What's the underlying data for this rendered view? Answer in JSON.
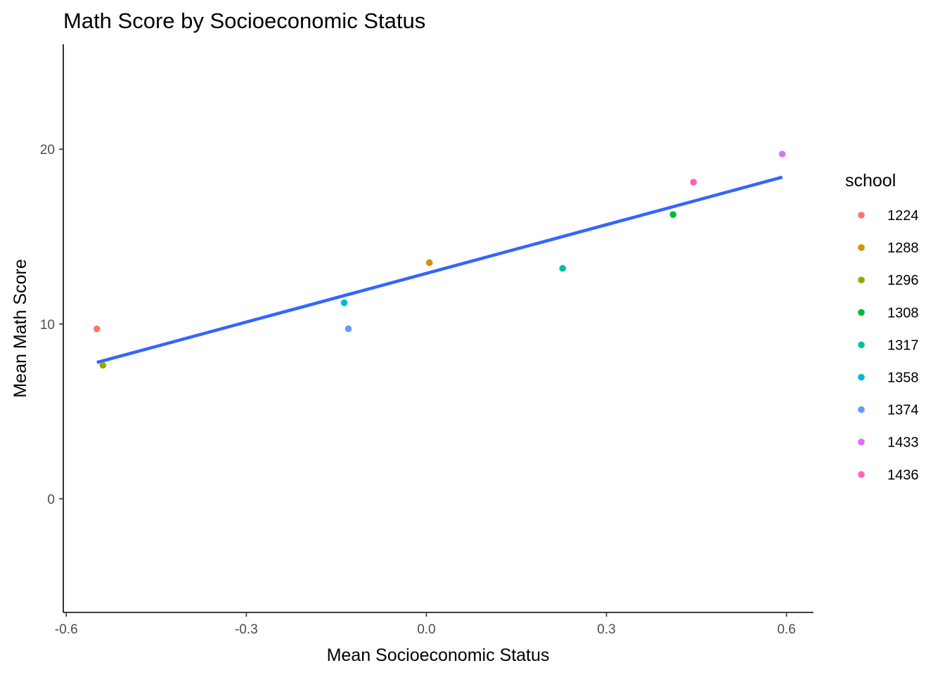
{
  "chart_data": {
    "type": "scatter",
    "title": "Math Score by Socioeconomic Status",
    "xlabel": "Mean Socioeconomic Status",
    "ylabel": "Mean Math Score",
    "xlim": [
      -0.605,
      0.645
    ],
    "ylim": [
      -6.5,
      26.0
    ],
    "x_ticks": [
      -0.6,
      -0.3,
      0.0,
      0.3,
      0.6
    ],
    "x_tick_labels": [
      "-0.6",
      "-0.3",
      "0.0",
      "0.3",
      "0.6"
    ],
    "y_ticks": [
      0,
      10,
      20
    ],
    "y_tick_labels": [
      "0",
      "10",
      "20"
    ],
    "grid": false,
    "legend_title": "school",
    "legend_position": "right",
    "points": [
      {
        "school": "1224",
        "x": -0.549,
        "y": 9.72,
        "color": "#F8766D"
      },
      {
        "school": "1288",
        "x": 0.005,
        "y": 13.51,
        "color": "#D39200"
      },
      {
        "school": "1296",
        "x": -0.539,
        "y": 7.64,
        "color": "#93AA00"
      },
      {
        "school": "1308",
        "x": 0.411,
        "y": 16.26,
        "color": "#00BA38"
      },
      {
        "school": "1317",
        "x": 0.227,
        "y": 13.18,
        "color": "#00C19F"
      },
      {
        "school": "1358",
        "x": -0.137,
        "y": 11.21,
        "color": "#00B9E3"
      },
      {
        "school": "1374",
        "x": -0.13,
        "y": 9.73,
        "color": "#619CFF"
      },
      {
        "school": "1433",
        "x": 0.593,
        "y": 19.72,
        "color": "#DB72FB"
      },
      {
        "school": "1436",
        "x": 0.445,
        "y": 18.11,
        "color": "#FF61C3"
      }
    ],
    "trend_line": {
      "type": "linear fit",
      "color": "#3366FF",
      "x": [
        -0.549,
        0.593
      ],
      "y": [
        7.8,
        18.4
      ]
    }
  }
}
